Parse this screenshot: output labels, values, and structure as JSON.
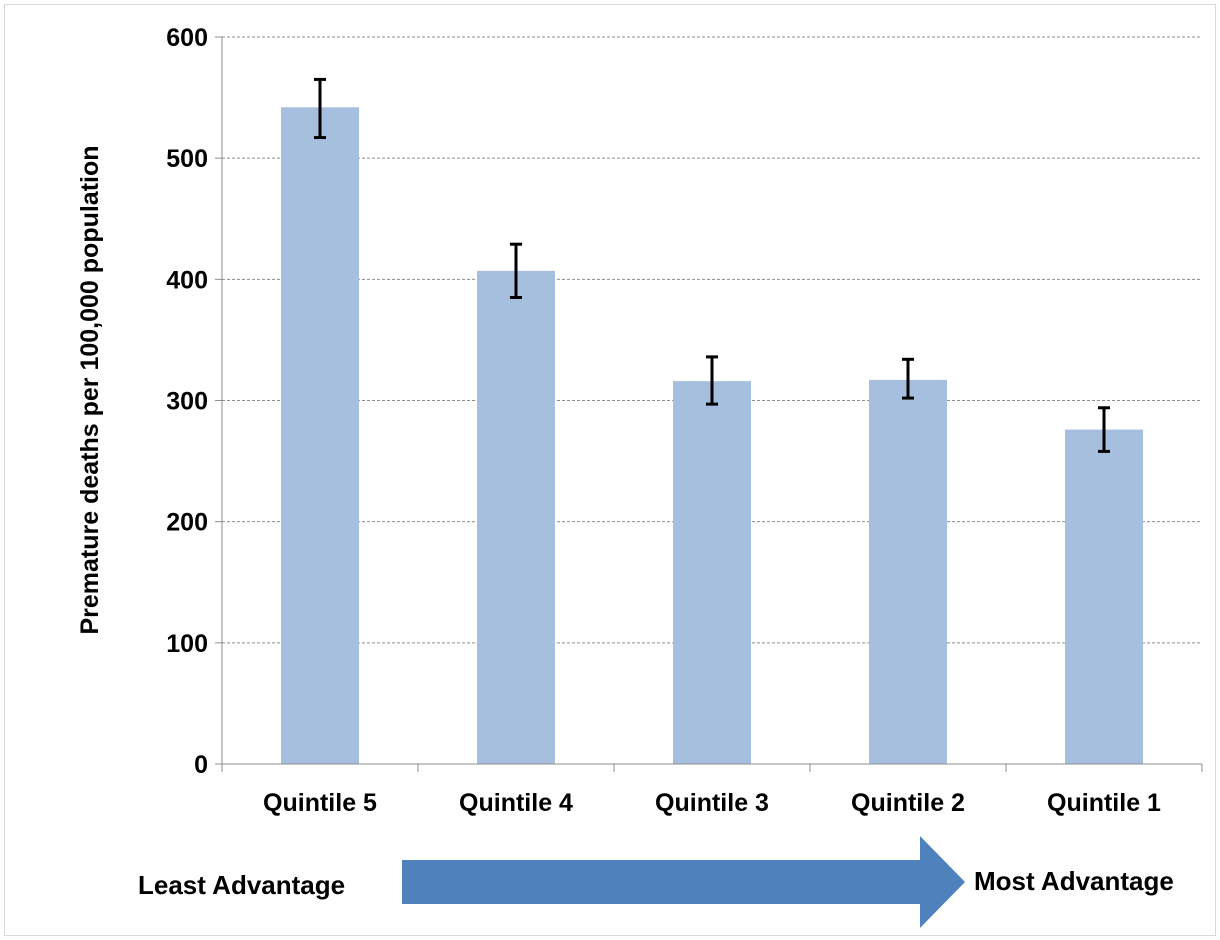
{
  "chart_data": {
    "type": "bar",
    "title": "",
    "xlabel": "",
    "ylabel": "Premature deaths per 100,000 population",
    "categories": [
      "Quintile 5",
      "Quintile 4",
      "Quintile 3",
      "Quintile 2",
      "Quintile 1"
    ],
    "values": [
      542,
      407,
      316,
      317,
      276
    ],
    "error_low": [
      517,
      385,
      297,
      302,
      258
    ],
    "error_high": [
      565,
      429,
      336,
      334,
      294
    ],
    "ylim": [
      0,
      600
    ],
    "yticks": [
      "0",
      "100",
      "200",
      "300",
      "400",
      "500",
      "600"
    ],
    "grid": true,
    "bar_color": "#a7bfde",
    "error_bar_color": "#000000"
  },
  "annotation": {
    "left_label": "Least Advantage",
    "right_label": "Most Advantage",
    "arrow_color": "#4f81bd"
  }
}
